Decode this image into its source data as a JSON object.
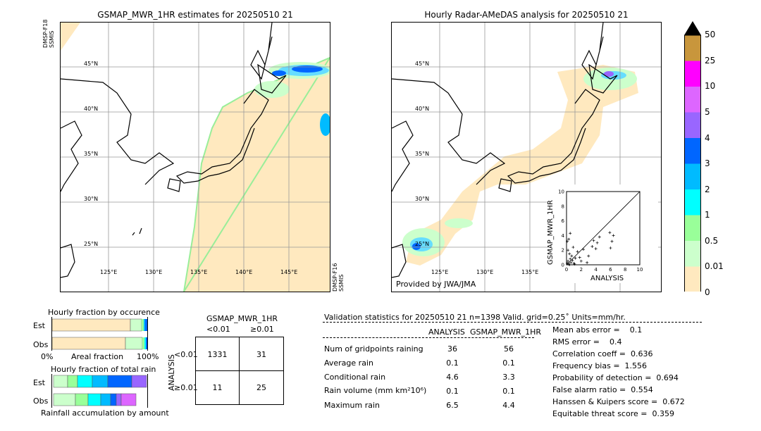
{
  "left_map": {
    "title": "GSMAP_MWR_1HR estimates for 20250510 21",
    "sat_top": "DMSP-F18\nSSMIS",
    "sat_bottom": "DMSP-F16\nSSMIS",
    "lat_labels": [
      "45°N",
      "40°N",
      "35°N",
      "30°N",
      "25°N"
    ],
    "lon_labels": [
      "125°E",
      "130°E",
      "135°E",
      "140°E",
      "145°E"
    ]
  },
  "right_map": {
    "title": "Hourly Radar-AMeDAS analysis for 20250510 21",
    "lat_labels": [
      "45°N",
      "40°N",
      "35°N",
      "30°N",
      "25°N"
    ],
    "lon_labels": [
      "125°E",
      "130°E",
      "135°E"
    ],
    "credit": "Provided by JWA/JMA"
  },
  "colorbar": {
    "labels": [
      "50",
      "25",
      "10",
      "5",
      "4",
      "3",
      "2",
      "1",
      "0.5",
      "0.01",
      "0"
    ],
    "colors": [
      "#c8963c",
      "#ff00ff",
      "#dd66ff",
      "#9966ff",
      "#0066ff",
      "#00bbff",
      "#00ffff",
      "#99ff99",
      "#ccffcc",
      "#ffe9bf"
    ]
  },
  "scatter": {
    "xlabel": "ANALYSIS",
    "ylabel": "GSMAP_MWR_1HR",
    "ticks": [
      "0",
      "2",
      "4",
      "6",
      "8",
      "10"
    ]
  },
  "chart_data": {
    "type": "scatter",
    "xlabel": "ANALYSIS",
    "ylabel": "GSMAP_MWR_1HR",
    "xlim": [
      0,
      10
    ],
    "ylim": [
      0,
      10
    ],
    "points": [
      [
        0.1,
        0.2
      ],
      [
        0.2,
        0.5
      ],
      [
        0.3,
        0.1
      ],
      [
        0.5,
        0.8
      ],
      [
        0.4,
        1.5
      ],
      [
        0.6,
        0.3
      ],
      [
        0.8,
        0.6
      ],
      [
        1.0,
        0.2
      ],
      [
        0.2,
        2.0
      ],
      [
        0.3,
        3.5
      ],
      [
        0.5,
        4.3
      ],
      [
        0.1,
        3.2
      ],
      [
        0.7,
        1.2
      ],
      [
        0.9,
        2.4
      ],
      [
        1.2,
        0.9
      ],
      [
        1.5,
        1.8
      ],
      [
        2.0,
        0.5
      ],
      [
        2.3,
        2.1
      ],
      [
        2.8,
        0.3
      ],
      [
        3.0,
        1.2
      ],
      [
        3.5,
        2.5
      ],
      [
        4.0,
        2.2
      ],
      [
        4.2,
        3.0
      ],
      [
        3.7,
        3.3
      ],
      [
        4.5,
        3.8
      ],
      [
        6.2,
        3.2
      ],
      [
        6.0,
        2.3
      ],
      [
        6.4,
        4.0
      ],
      [
        5.9,
        4.4
      ],
      [
        1.8,
        1.0
      ],
      [
        0.4,
        0.0
      ],
      [
        1.1,
        0.1
      ]
    ]
  },
  "fraction_panels": {
    "title_occurrence": "Hourly fraction by occurence",
    "title_total": "Hourly fraction of total rain",
    "row_est": "Est",
    "row_obs": "Obs",
    "axis_left": "0%",
    "axis_mid": "Areal fraction",
    "axis_right": "100%",
    "bottom_caption": "Rainfall accumulation by amount"
  },
  "contingency": {
    "title": "GSMAP_MWR_1HR",
    "col_lt": "<0.01",
    "col_ge": "≥0.01",
    "row_lt": "<0.01",
    "row_ge": "≥0.01",
    "side": "ANALYSIS",
    "a": "1331",
    "b": "31",
    "c": "11",
    "d": "25"
  },
  "validation": {
    "header": "Validation statistics for 20250510 21  n=1398 Valid. grid=0.25˚ Units=mm/hr.",
    "col_analysis": "ANALYSIS",
    "col_gsmap": "GSMAP_MWR_1HR",
    "rows": [
      {
        "label": "Num of gridpoints raining",
        "a": "36",
        "g": "56"
      },
      {
        "label": "Average rain",
        "a": "0.1",
        "g": "0.1"
      },
      {
        "label": "Conditional rain",
        "a": "4.6",
        "g": "3.3"
      },
      {
        "label": "Rain volume (mm km²10⁶)",
        "a": "0.1",
        "g": "0.1"
      },
      {
        "label": "Maximum rain",
        "a": "6.5",
        "g": "4.4"
      }
    ],
    "scores": [
      "Mean abs error =    0.1",
      "RMS error =    0.4",
      "Correlation coeff =  0.636",
      "Frequency bias =  1.556",
      "Probability of detection =  0.694",
      "False alarm ratio =  0.554",
      "Hanssen & Kuipers score =  0.672",
      "Equitable threat score =  0.359"
    ]
  }
}
